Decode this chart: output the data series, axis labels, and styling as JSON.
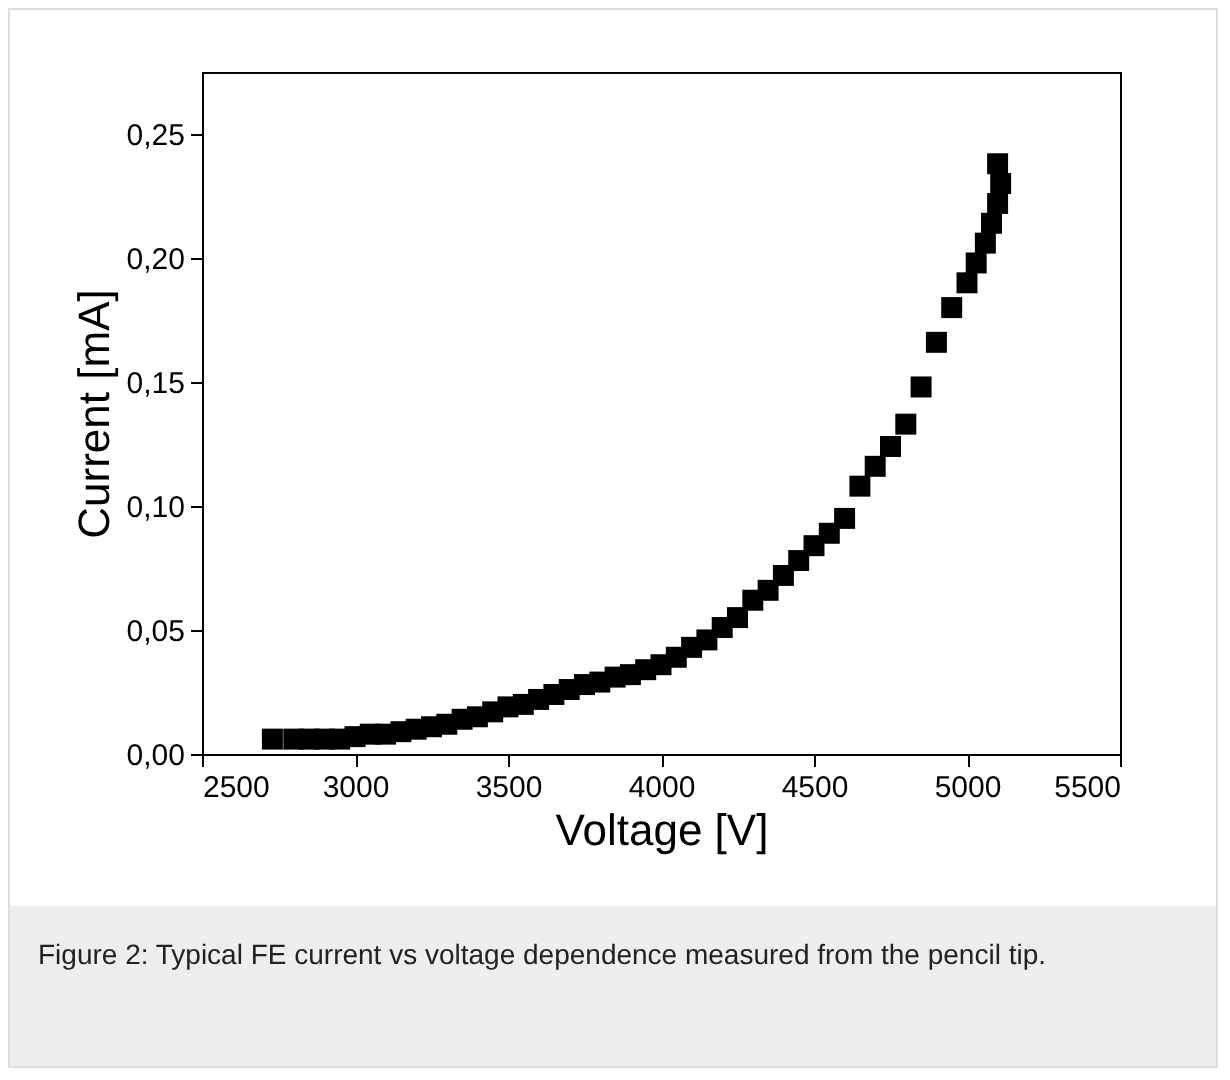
{
  "chart_data": {
    "type": "scatter",
    "xlabel": "Voltage [V]",
    "ylabel": "Current [mA]",
    "marker": "square",
    "x": [
      2730,
      2800,
      2850,
      2900,
      2950,
      3000,
      3050,
      3100,
      3150,
      3200,
      3250,
      3300,
      3350,
      3400,
      3450,
      3500,
      3550,
      3600,
      3650,
      3700,
      3750,
      3800,
      3850,
      3900,
      3950,
      4000,
      4050,
      4100,
      4150,
      4200,
      4250,
      4300,
      4350,
      4400,
      4450,
      4500,
      4550,
      4600,
      4650,
      4700,
      4750,
      4800,
      4850,
      4900,
      4950,
      5000,
      5030,
      5060,
      5080,
      5100,
      5100,
      5110
    ],
    "series": [
      {
        "color": "#000000",
        "values": [
          0.006,
          0.006,
          0.006,
          0.006,
          0.006,
          0.007,
          0.008,
          0.008,
          0.009,
          0.01,
          0.011,
          0.012,
          0.014,
          0.015,
          0.017,
          0.019,
          0.02,
          0.022,
          0.024,
          0.026,
          0.028,
          0.029,
          0.031,
          0.032,
          0.034,
          0.036,
          0.039,
          0.043,
          0.046,
          0.051,
          0.055,
          0.062,
          0.066,
          0.072,
          0.078,
          0.084,
          0.089,
          0.095,
          0.108,
          0.116,
          0.124,
          0.133,
          0.148,
          0.166,
          0.18,
          0.19,
          0.198,
          0.206,
          0.214,
          0.222,
          0.238,
          0.23
        ]
      }
    ],
    "xlim": [
      2500,
      5500
    ],
    "xticks": [
      2500,
      3000,
      3500,
      4000,
      4500,
      5000,
      5500
    ],
    "ylim": [
      0,
      0.275
    ],
    "yticks": [
      {
        "value": 0,
        "label": "0,00"
      },
      {
        "value": 0.05,
        "label": "0,05"
      },
      {
        "value": 0.1,
        "label": "0,10"
      },
      {
        "value": 0.15,
        "label": "0,15"
      },
      {
        "value": 0.2,
        "label": "0,20"
      },
      {
        "value": 0.25,
        "label": "0,25"
      }
    ],
    "annotations": [
      "Figure 2: Typical FE current vs voltage dependence measured from the pencil tip."
    ]
  }
}
